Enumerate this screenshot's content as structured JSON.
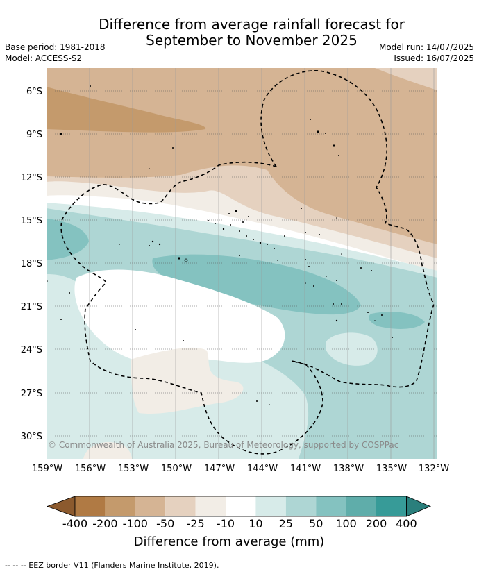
{
  "title_line1": "Difference from average rainfall forecast for",
  "title_line2": "September to November 2025",
  "base_period": "Base period: 1981-2018",
  "model": "Model: ACCESS-S2",
  "model_run": "Model run: 14/07/2025",
  "issued": "Issued: 16/07/2025",
  "lat_labels": [
    "6°S",
    "9°S",
    "12°S",
    "15°S",
    "18°S",
    "21°S",
    "24°S",
    "27°S",
    "30°S"
  ],
  "lon_labels": [
    "159°W",
    "156°W",
    "153°W",
    "150°W",
    "147°W",
    "144°W",
    "141°W",
    "138°W",
    "135°W",
    "132°W"
  ],
  "copyright": "© Commonwealth of Australia 2025, Bureau of Meteorology, supported by COSPPac",
  "colorbar": {
    "labels": [
      "-400",
      "-200",
      "-100",
      "-50",
      "-25",
      "-10",
      "10",
      "25",
      "50",
      "100",
      "200",
      "400"
    ],
    "colors": [
      "#8c5a2e",
      "#b07a44",
      "#c49a6c",
      "#d5b494",
      "#e5d1bf",
      "#f2ede6",
      "#ffffff",
      "#d7ebe9",
      "#aed6d4",
      "#84c2c0",
      "#5fadaa",
      "#379b98",
      "#2a7f7c"
    ],
    "title": "Difference from average (mm)"
  },
  "footer": "--  --  -- EEZ border V11 (Flanders Marine Institute, 2019)."
}
